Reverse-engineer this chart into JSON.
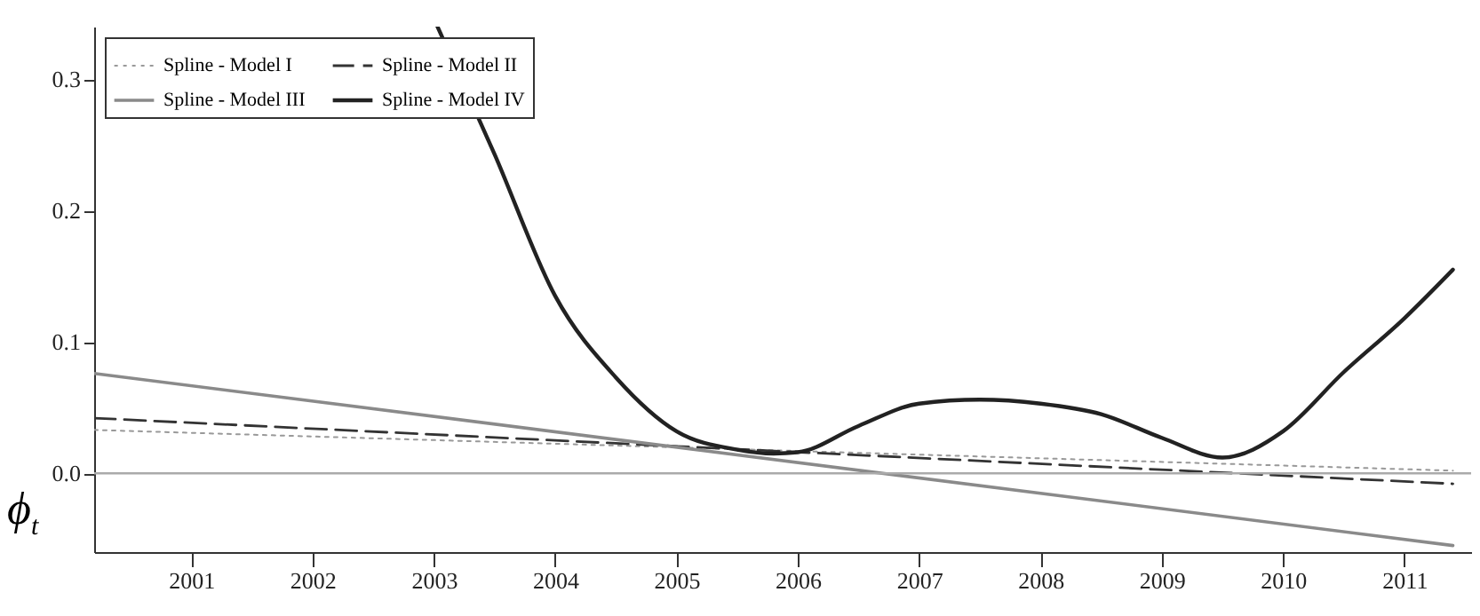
{
  "chart_data": {
    "type": "line",
    "ylabel": "ϕ$_{t}$",
    "xlim": [
      2000.2,
      2011.55
    ],
    "xticks": [
      2001,
      2002,
      2003,
      2004,
      2005,
      2006,
      2007,
      2008,
      2009,
      2010,
      2011
    ],
    "ylim": [
      -0.06,
      0.34
    ],
    "yticks": [
      {
        "value": 0,
        "label": "0.0"
      },
      {
        "value": 0.1,
        "label": "0.1"
      },
      {
        "value": 0.2,
        "label": "0.2"
      },
      {
        "value": 0.3,
        "label": "0.3"
      }
    ],
    "grid": false,
    "legend": "top left",
    "marker": "none",
    "ref_lines": [
      {
        "axis": "y",
        "value": 0,
        "color": "#aaaaaa"
      }
    ],
    "series": [
      {
        "name": "Spline - Model I",
        "color": "#999999",
        "line_style": "dotted",
        "x": [
          2000.2,
          2011.4
        ],
        "values": [
          0.033,
          0.002
        ]
      },
      {
        "name": "Spline - Model II",
        "color": "#333333",
        "line_style": "dashed",
        "x": [
          2000.2,
          2011.4
        ],
        "values": [
          0.042,
          -0.008
        ]
      },
      {
        "name": "Spline - Model III",
        "color": "#8a8a8a",
        "line_style": "solid",
        "x": [
          2000.2,
          2011.4
        ],
        "values": [
          0.076,
          -0.055
        ]
      },
      {
        "name": "Spline - Model IV",
        "color": "#222222",
        "line_style": "solid",
        "x": [
          2003.03,
          2003.5,
          2004,
          2004.5,
          2005,
          2005.5,
          2005.8,
          2006,
          2006.5,
          2007,
          2007.5,
          2008,
          2008.5,
          2009,
          2009.5,
          2010,
          2010.5,
          2011,
          2011.4
        ],
        "values": [
          0.34,
          0.243,
          0.135,
          0.073,
          0.032,
          0.018,
          0.015,
          0.016,
          0.036,
          0.053,
          0.056,
          0.053,
          0.045,
          0.027,
          0.012,
          0.032,
          0.077,
          0.118,
          0.155
        ]
      }
    ]
  }
}
